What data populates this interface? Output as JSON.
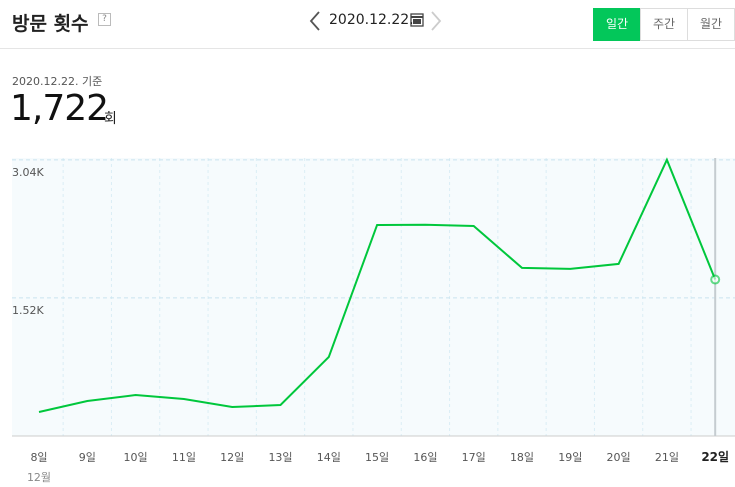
{
  "header": {
    "title": "방문 횟수",
    "help": "?",
    "date": "2020.12.22.",
    "tabs": [
      "일간",
      "주간",
      "월간"
    ]
  },
  "summary": {
    "basis": "2020.12.22. 기준",
    "total": "1,722",
    "unit": "회"
  },
  "chart_data": {
    "type": "line",
    "categories": [
      "8일",
      "9일",
      "10일",
      "11일",
      "12일",
      "13일",
      "14일",
      "15일",
      "16일",
      "17일",
      "18일",
      "19일",
      "20일",
      "21일",
      "22일"
    ],
    "month_label": "12월",
    "series": [
      {
        "name": "방문 횟수",
        "color": "#00c73c",
        "values": [
          264,
          385,
          451,
          407,
          319,
          341,
          870,
          2323,
          2325,
          2312,
          1850,
          1839,
          1894,
          3040,
          1722
        ]
      }
    ],
    "ylim": [
      0,
      3060
    ],
    "yticks": [
      {
        "value": 1520,
        "label": "1.52K"
      },
      {
        "value": 3040,
        "label": "3.04K"
      }
    ],
    "grid": true
  }
}
